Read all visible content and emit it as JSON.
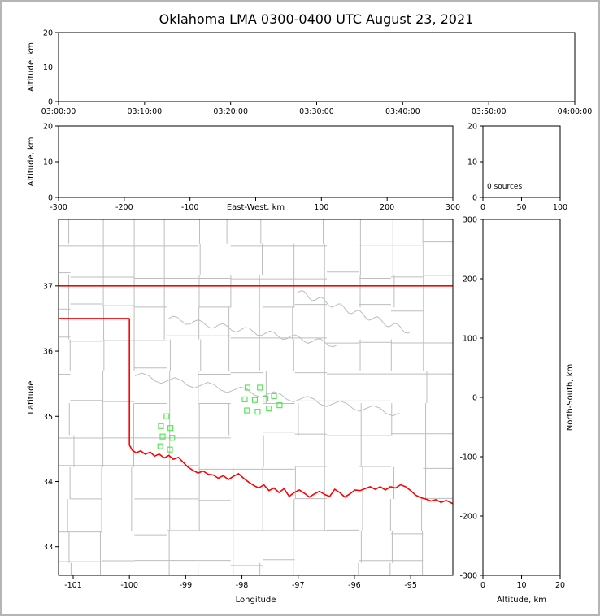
{
  "figure": {
    "title": "Oklahoma LMA 0300-0400 UTC August 23, 2021",
    "background_color": "#ffffff",
    "frame_color": "#b5b5b5",
    "axis_color": "#000000",
    "county_line_color": "#bdbdbd",
    "state_border_color": "#ff0000",
    "station_marker_color": "#57e657"
  },
  "chart_data": [
    {
      "id": "time-altitude-panel",
      "type": "scatter",
      "xlabel": "",
      "ylabel": "Altitude, km",
      "xtick_labels": [
        "03:00:00",
        "03:10:00",
        "03:20:00",
        "03:30:00",
        "03:40:00",
        "03:50:00",
        "04:00:00"
      ],
      "ylim": [
        0,
        20
      ],
      "yticks": [
        0,
        10,
        20
      ],
      "points": []
    },
    {
      "id": "eastwest-altitude-panel",
      "type": "scatter",
      "xlabel": "East-West, km",
      "ylabel": "Altitude, km",
      "xlim": [
        -300,
        300
      ],
      "xticks": [
        -300,
        -200,
        -100,
        0,
        100,
        200,
        300
      ],
      "ylim": [
        0,
        20
      ],
      "yticks": [
        0,
        10,
        20
      ],
      "points": []
    },
    {
      "id": "altitude-histogram-panel",
      "type": "line",
      "annotation": "0 sources",
      "xlim": [
        0,
        100
      ],
      "xticks": [
        0,
        50,
        100
      ],
      "ylim": [
        0,
        20
      ],
      "yticks": [
        0,
        10,
        20
      ],
      "points": []
    },
    {
      "id": "plan-view-map-panel",
      "type": "scatter",
      "xlabel": "Longitude",
      "ylabel": "Latitude",
      "xlim": [
        -101.26,
        -94.25
      ],
      "xticks": [
        -101,
        -100,
        -99,
        -98,
        -97,
        -96,
        -95
      ],
      "ylim": [
        32.56,
        38.02
      ],
      "yticks": [
        33,
        34,
        35,
        36,
        37
      ],
      "station_markers_lon_lat": [
        [
          -97.9,
          35.44
        ],
        [
          -97.68,
          35.44
        ],
        [
          -97.95,
          35.26
        ],
        [
          -97.77,
          35.25
        ],
        [
          -97.58,
          35.27
        ],
        [
          -97.91,
          35.09
        ],
        [
          -97.72,
          35.07
        ],
        [
          -97.52,
          35.12
        ],
        [
          -97.33,
          35.17
        ],
        [
          -97.43,
          35.31
        ],
        [
          -99.34,
          35.0
        ],
        [
          -99.44,
          34.85
        ],
        [
          -99.27,
          34.82
        ],
        [
          -99.41,
          34.69
        ],
        [
          -99.24,
          34.67
        ],
        [
          -99.45,
          34.54
        ],
        [
          -99.28,
          34.49
        ]
      ],
      "state_border": {
        "north_border_lat": 37.0,
        "panhandle_south_lat": 36.5,
        "main_body_west_lon": -100.0,
        "red_river_lon_lat": [
          [
            -100.0,
            34.56
          ],
          [
            -99.95,
            34.48
          ],
          [
            -99.88,
            34.44
          ],
          [
            -99.8,
            34.47
          ],
          [
            -99.72,
            34.42
          ],
          [
            -99.63,
            34.45
          ],
          [
            -99.55,
            34.39
          ],
          [
            -99.47,
            34.42
          ],
          [
            -99.38,
            34.36
          ],
          [
            -99.3,
            34.4
          ],
          [
            -99.22,
            34.34
          ],
          [
            -99.13,
            34.37
          ],
          [
            -99.05,
            34.3
          ],
          [
            -98.96,
            34.22
          ],
          [
            -98.87,
            34.17
          ],
          [
            -98.78,
            34.13
          ],
          [
            -98.69,
            34.16
          ],
          [
            -98.6,
            34.11
          ],
          [
            -98.51,
            34.1
          ],
          [
            -98.42,
            34.05
          ],
          [
            -98.33,
            34.09
          ],
          [
            -98.24,
            34.03
          ],
          [
            -98.15,
            34.08
          ],
          [
            -98.06,
            34.12
          ],
          [
            -97.97,
            34.05
          ],
          [
            -97.88,
            33.99
          ],
          [
            -97.79,
            33.94
          ],
          [
            -97.7,
            33.9
          ],
          [
            -97.61,
            33.95
          ],
          [
            -97.52,
            33.86
          ],
          [
            -97.43,
            33.9
          ],
          [
            -97.34,
            33.83
          ],
          [
            -97.25,
            33.89
          ],
          [
            -97.16,
            33.77
          ],
          [
            -97.07,
            33.83
          ],
          [
            -96.98,
            33.87
          ],
          [
            -96.89,
            33.82
          ],
          [
            -96.8,
            33.76
          ],
          [
            -96.71,
            33.81
          ],
          [
            -96.62,
            33.85
          ],
          [
            -96.53,
            33.8
          ],
          [
            -96.44,
            33.77
          ],
          [
            -96.35,
            33.88
          ],
          [
            -96.26,
            33.83
          ],
          [
            -96.17,
            33.76
          ],
          [
            -96.08,
            33.81
          ],
          [
            -95.99,
            33.87
          ],
          [
            -95.9,
            33.86
          ],
          [
            -95.81,
            33.89
          ],
          [
            -95.72,
            33.92
          ],
          [
            -95.63,
            33.88
          ],
          [
            -95.54,
            33.92
          ],
          [
            -95.45,
            33.87
          ],
          [
            -95.36,
            33.92
          ],
          [
            -95.27,
            33.9
          ],
          [
            -95.18,
            33.95
          ],
          [
            -95.09,
            33.92
          ],
          [
            -95.0,
            33.86
          ],
          [
            -94.91,
            33.79
          ],
          [
            -94.82,
            33.75
          ],
          [
            -94.73,
            33.73
          ],
          [
            -94.64,
            33.7
          ],
          [
            -94.55,
            33.72
          ],
          [
            -94.46,
            33.68
          ],
          [
            -94.37,
            33.71
          ],
          [
            -94.25,
            33.66
          ]
        ]
      }
    },
    {
      "id": "northsouth-altitude-panel",
      "type": "scatter",
      "xlabel": "Altitude, km",
      "ylabel": "North-South, km",
      "xlim": [
        0,
        20
      ],
      "xticks": [
        0,
        10,
        20
      ],
      "ylim": [
        -300,
        300
      ],
      "yticks": [
        300,
        200,
        100,
        0,
        -100,
        -200,
        -300
      ],
      "points": []
    }
  ]
}
